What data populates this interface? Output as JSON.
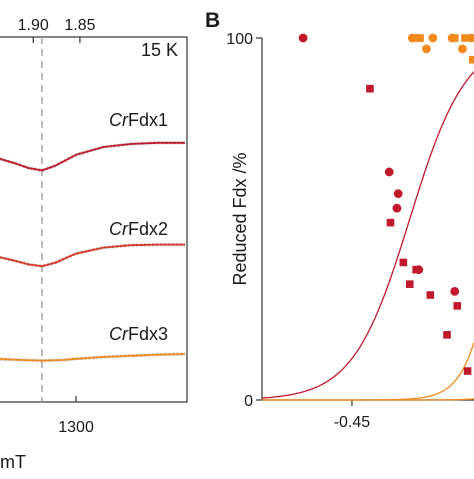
{
  "chart_data": [
    {
      "panel": "",
      "type": "line",
      "title": "",
      "top_axis": {
        "ticks": [
          1.9,
          1.85
        ],
        "tick_labels": [
          "1.90",
          "1.85"
        ]
      },
      "bottom_axis": {
        "ticks": [
          1300
        ],
        "tick_labels": [
          "1300"
        ],
        "label_fragment": "mT"
      },
      "temperature_label": "15 K",
      "dashed_reference_x": 1275,
      "series": [
        {
          "name_italic": "Cr",
          "name_rest": "Fdx1",
          "color": "#c0192b",
          "x": [
            1180,
            1200,
            1220,
            1240,
            1255,
            1265,
            1275,
            1285,
            1300,
            1320,
            1340,
            1360,
            1380
          ],
          "y": [
            0.0,
            -0.02,
            -0.05,
            -0.12,
            -0.22,
            -0.3,
            -0.34,
            -0.26,
            -0.08,
            0.05,
            0.1,
            0.12,
            0.12
          ]
        },
        {
          "name_italic": "Cr",
          "name_rest": "Fdx2",
          "color": "#d83a2a",
          "x": [
            1180,
            1200,
            1220,
            1240,
            1255,
            1265,
            1275,
            1285,
            1300,
            1320,
            1340,
            1360,
            1380
          ],
          "y": [
            0.0,
            -0.02,
            -0.04,
            -0.1,
            -0.18,
            -0.24,
            -0.27,
            -0.21,
            -0.06,
            0.04,
            0.08,
            0.09,
            0.09
          ]
        },
        {
          "name_italic": "Cr",
          "name_rest": "Fdx3",
          "color": "#f08a1c",
          "x": [
            1180,
            1200,
            1220,
            1240,
            1260,
            1275,
            1290,
            1300,
            1320,
            1340,
            1360,
            1380
          ],
          "y": [
            0.0,
            -0.01,
            -0.02,
            -0.03,
            -0.05,
            -0.06,
            -0.05,
            -0.03,
            0.0,
            0.02,
            0.04,
            0.05
          ]
        }
      ]
    },
    {
      "panel": "B",
      "type": "scatter",
      "title": "",
      "xlabel": "",
      "ylabel": "Reduced Fdx /%",
      "xlim": [
        -0.52,
        -0.355
      ],
      "ylim": [
        0,
        100
      ],
      "x_ticks": [
        -0.45
      ],
      "x_tick_labels": [
        "-0.45"
      ],
      "y_ticks": [
        0,
        100
      ],
      "y_tick_labels": [
        "0",
        "100"
      ],
      "series": [
        {
          "color": "#c0192b",
          "marker": "circle",
          "points": [
            [
              -0.488,
              100
            ],
            [
              -0.421,
              63
            ],
            [
              -0.414,
              57
            ],
            [
              -0.415,
              53
            ],
            [
              -0.398,
              36
            ],
            [
              -0.37,
              30
            ]
          ]
        },
        {
          "color": "#c0192b",
          "marker": "square",
          "points": [
            [
              -0.436,
              86
            ],
            [
              -0.42,
              49
            ],
            [
              -0.41,
              38
            ],
            [
              -0.4,
              36
            ],
            [
              -0.405,
              32
            ],
            [
              -0.389,
              29
            ],
            [
              -0.368,
              26
            ],
            [
              -0.376,
              18
            ],
            [
              -0.36,
              8
            ]
          ]
        },
        {
          "color": "#f08a1c",
          "marker": "circle",
          "points": [
            [
              -0.403,
              100
            ],
            [
              -0.392,
              97
            ],
            [
              -0.387,
              100
            ],
            [
              -0.372,
              100
            ],
            [
              -0.364,
              97
            ],
            [
              -0.357,
              100
            ]
          ]
        },
        {
          "color": "#f08a1c",
          "marker": "square",
          "points": [
            [
              -0.399,
              100
            ],
            [
              -0.397,
              100
            ],
            [
              -0.37,
              100
            ],
            [
              -0.362,
              100
            ],
            [
              -0.356,
              94
            ]
          ]
        }
      ],
      "fits": [
        {
          "color": "#c0192b",
          "midpoint": -0.405,
          "width": 0.022
        },
        {
          "color": "#f08a1c",
          "midpoint": -0.335,
          "width": 0.012
        },
        {
          "color": "#f08a1c",
          "midpoint": -0.285,
          "width": 0.012
        }
      ]
    }
  ]
}
